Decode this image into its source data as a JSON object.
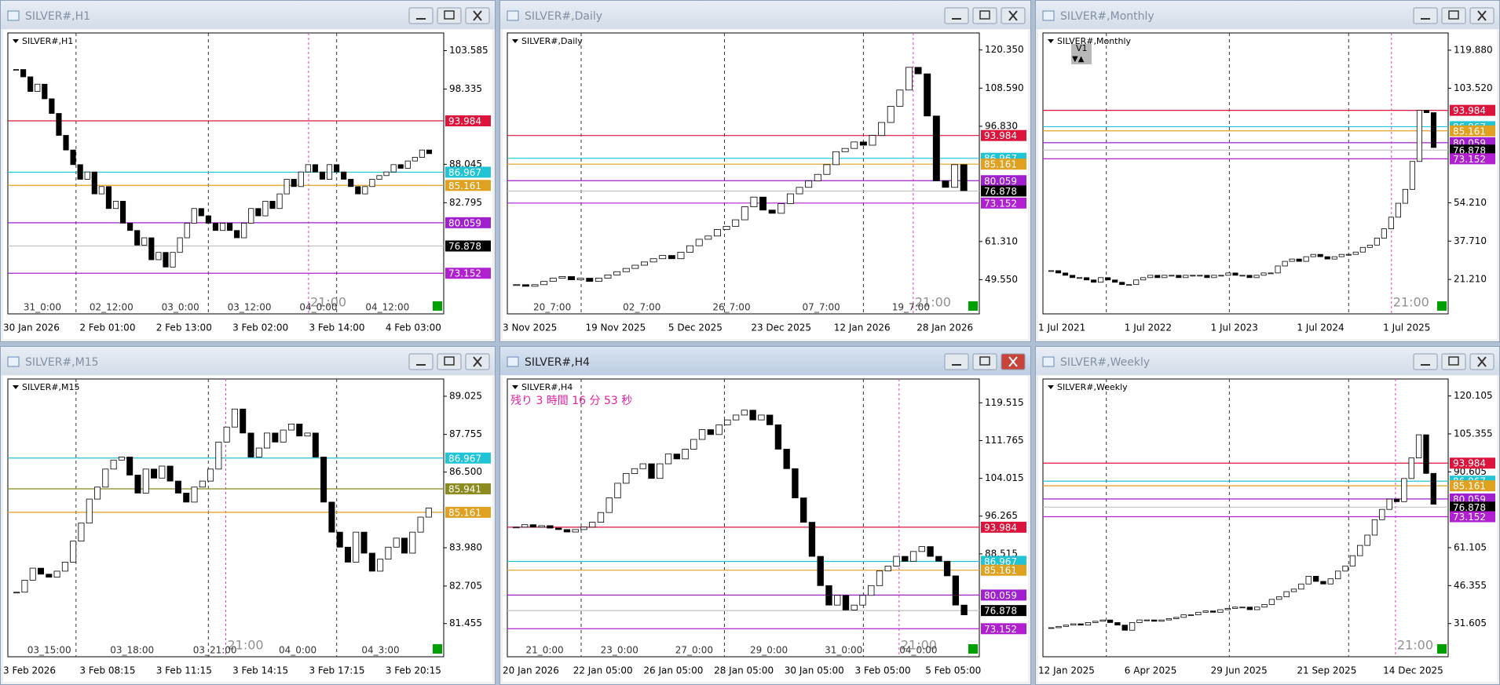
{
  "windows": [
    {
      "title": "SILVER#,H1",
      "type": "candlestick",
      "ylim": [
        67.6,
        106
      ],
      "yticks": [
        103.585,
        98.335,
        88.045,
        82.795
      ],
      "levels": [
        {
          "value": 93.984,
          "color": "#dc143c"
        },
        {
          "value": 86.967,
          "color": "#20c4d4"
        },
        {
          "value": 85.161,
          "color": "#e0a020"
        },
        {
          "value": 80.059,
          "color": "#a020d0"
        },
        {
          "value": 76.878,
          "color": "#000000"
        },
        {
          "value": 73.152,
          "color": "#b020d0"
        }
      ],
      "time_labels": [
        "30 Jan 2026",
        "2 Feb 01:00",
        "2 Feb 13:00",
        "3 Feb 02:00",
        "3 Feb 14:00",
        "4 Feb 03:00"
      ],
      "period_labels": [
        "31_0:00",
        "02_12:00",
        "03_0:00",
        "03_12:00",
        "04_0:00",
        "04_12:00"
      ],
      "marker": "21:00",
      "values": [
        101,
        100,
        98,
        99,
        97,
        95,
        92,
        90,
        88,
        86,
        87,
        84,
        85,
        82,
        83,
        80,
        79,
        77,
        78,
        75,
        76,
        74,
        76,
        78,
        80,
        82,
        81,
        80,
        79,
        80,
        79,
        78,
        80,
        82,
        81,
        83,
        82,
        84,
        86,
        85,
        87,
        88,
        87,
        86,
        88,
        87,
        86,
        85,
        84,
        85,
        86,
        86.5,
        87,
        88,
        87.5,
        88.5,
        89,
        90,
        89.5
      ]
    },
    {
      "title": "SILVER#,Daily",
      "type": "candlestick",
      "ylim": [
        39,
        125.6
      ],
      "yticks": [
        {
          "value": 120.35,
          "label": "120.350"
        },
        {
          "value": 108.59,
          "label": "108.590"
        },
        {
          "value": 96.83,
          "label": "96.830"
        },
        {
          "value": 61.31,
          "label": "61.310"
        },
        {
          "value": 49.55,
          "label": "49.550"
        }
      ],
      "levels": [
        {
          "value": 93.984,
          "color": "#dc143c"
        },
        {
          "value": 86.967,
          "color": "#20c4d4"
        },
        {
          "value": 85.161,
          "color": "#e0a020"
        },
        {
          "value": 80.059,
          "color": "#a020d0"
        },
        {
          "value": 76.878,
          "color": "#000000"
        },
        {
          "value": 73.152,
          "color": "#b020d0"
        }
      ],
      "time_labels": [
        "3 Nov 2025",
        "19 Nov 2025",
        "5 Dec 2025",
        "23 Dec 2025",
        "12 Jan 2026",
        "28 Jan 2026"
      ],
      "period_labels": [
        "20_7:00",
        "02_7:00",
        "26_7:00",
        "07_7:00",
        "19_7:00"
      ],
      "marker": "21:00",
      "values": [
        48,
        47.5,
        48,
        49,
        50,
        50.5,
        49.5,
        50,
        49,
        50,
        51,
        52,
        53,
        54,
        55,
        56,
        57,
        56,
        58,
        60,
        62,
        63,
        65,
        66,
        68,
        72,
        75,
        71,
        70,
        73,
        76,
        78,
        80,
        82,
        85,
        89,
        90,
        92,
        91,
        94,
        98,
        103,
        108,
        115,
        113,
        100,
        80,
        78,
        85,
        77
      ]
    },
    {
      "title": "SILVER#,Monthly",
      "type": "candlestick",
      "ylim": [
        6.4,
        127.3
      ],
      "badge": "V1",
      "yticks": [
        {
          "value": 119.88,
          "label": "119.880"
        },
        {
          "value": 103.52,
          "label": "103.520"
        },
        {
          "value": 54.21,
          "label": "54.210"
        },
        {
          "value": 37.71,
          "label": "37.710"
        },
        {
          "value": 21.21,
          "label": "21.210"
        }
      ],
      "levels": [
        {
          "value": 93.984,
          "color": "#dc143c"
        },
        {
          "value": 86.967,
          "color": "#20c4d4"
        },
        {
          "value": 85.161,
          "color": "#e0a020"
        },
        {
          "value": 80.059,
          "color": "#a020d0"
        },
        {
          "value": 76.878,
          "color": "#000000"
        },
        {
          "value": 73.152,
          "color": "#b020d0"
        }
      ],
      "time_labels": [
        "1 Jul 2021",
        "1 Jul 2022",
        "1 Jul 2023",
        "1 Jul 2024",
        "1 Jul 2025"
      ],
      "period_labels": [],
      "marker": "21:00",
      "values": [
        25,
        24,
        23,
        22,
        22,
        21,
        20,
        22,
        21,
        20,
        19,
        19,
        21,
        22,
        23,
        22,
        23,
        23,
        22,
        23,
        23,
        23,
        22,
        23,
        23,
        24,
        23,
        23,
        22,
        23,
        24,
        24,
        27,
        29,
        30,
        29,
        31,
        32,
        31,
        30,
        31,
        32,
        32,
        33,
        35,
        36,
        39,
        43,
        48,
        54,
        60,
        72,
        94,
        93,
        78
      ]
    },
    {
      "title": "SILVER#,M15",
      "type": "candlestick",
      "ylim": [
        80.35,
        89.6
      ],
      "yticks": [
        89.025,
        87.755,
        {
          "value": 86.5,
          "label": "86.500"
        },
        {
          "value": 83.98,
          "label": "83.980"
        },
        82.705,
        81.455
      ],
      "levels": [
        {
          "value": 86.967,
          "color": "#20c4d4"
        },
        {
          "value": 85.941,
          "color": "#8b8b20"
        },
        {
          "value": 85.161,
          "color": "#e0a020"
        }
      ],
      "time_labels": [
        "3 Feb 2026",
        "3 Feb 08:15",
        "3 Feb 11:15",
        "3 Feb 14:15",
        "3 Feb 17:15",
        "3 Feb 20:15"
      ],
      "period_labels": [
        "03_15:00",
        "03_18:00",
        "03_21:00",
        "04_0:00",
        "04_3:00"
      ],
      "marker": "21:00",
      "values": [
        82.5,
        82.9,
        83.3,
        83.1,
        83.0,
        83.2,
        83.5,
        84.2,
        84.8,
        85.6,
        86.0,
        86.6,
        86.9,
        87.0,
        86.4,
        85.8,
        86.6,
        86.3,
        86.7,
        86.2,
        85.8,
        85.5,
        86.0,
        86.2,
        86.6,
        87.5,
        88.0,
        88.6,
        87.8,
        87.0,
        87.3,
        87.8,
        87.5,
        87.9,
        88.1,
        87.7,
        87.8,
        87.0,
        85.5,
        84.5,
        84.0,
        83.5,
        84.5,
        83.8,
        83.2,
        83.6,
        84.0,
        84.3,
        83.8,
        84.5,
        85.0,
        85.3
      ]
    },
    {
      "title": "SILVER#,H4",
      "type": "candlestick",
      "ylim": [
        67.4,
        124.4
      ],
      "active": true,
      "countdown": "残り 3 時間 16 分 53 秒",
      "yticks": [
        119.515,
        111.765,
        104.015,
        96.265,
        88.515
      ],
      "levels": [
        {
          "value": 93.984,
          "color": "#dc143c"
        },
        {
          "value": 86.967,
          "color": "#20c4d4"
        },
        {
          "value": 85.161,
          "color": "#e0a020"
        },
        {
          "value": 80.059,
          "color": "#a020d0"
        },
        {
          "value": 76.878,
          "color": "#000000"
        },
        {
          "value": 73.152,
          "color": "#b020d0"
        }
      ],
      "time_labels": [
        "20 Jan 2026",
        "22 Jan 05:00",
        "26 Jan 05:00",
        "28 Jan 05:00",
        "30 Jan 05:00",
        "3 Feb 05:00",
        "5 Feb 05:00"
      ],
      "period_labels": [
        "21_0:00",
        "23_0:00",
        "27_0:00",
        "29_0:00",
        "31_0:00",
        "04_0:00"
      ],
      "marker": "21:00",
      "values": [
        94,
        94.5,
        94,
        94.3,
        93.8,
        93.5,
        93,
        93.5,
        94,
        95,
        97,
        100,
        103,
        105,
        106,
        107,
        104,
        107,
        109,
        108,
        110,
        112,
        114,
        113,
        115,
        116,
        117,
        118,
        116,
        117,
        115,
        110,
        106,
        100,
        95,
        88,
        82,
        78,
        80,
        77,
        78,
        80,
        82,
        85,
        86,
        88,
        87,
        89,
        90,
        88,
        87,
        84,
        78,
        76
      ]
    },
    {
      "title": "SILVER#,Weekly",
      "type": "candlestick",
      "ylim": [
        18.7,
        126.7
      ],
      "yticks": [
        120.105,
        105.355,
        90.605,
        61.105,
        46.355,
        31.605
      ],
      "levels": [
        {
          "value": 93.984,
          "color": "#dc143c"
        },
        {
          "value": 86.967,
          "color": "#20c4d4"
        },
        {
          "value": 85.161,
          "color": "#e0a020"
        },
        {
          "value": 80.059,
          "color": "#a020d0"
        },
        {
          "value": 76.878,
          "color": "#000000"
        },
        {
          "value": 73.152,
          "color": "#b020d0"
        }
      ],
      "time_labels": [
        "12 Jan 2025",
        "6 Apr 2025",
        "29 Jun 2025",
        "21 Sep 2025",
        "14 Dec 2025"
      ],
      "period_labels": [],
      "marker": "21:00",
      "values": [
        30,
        30.5,
        31,
        31.5,
        31,
        32,
        32.5,
        33,
        32,
        31,
        29,
        32,
        33,
        33,
        32.5,
        33,
        33.5,
        34,
        35,
        35,
        36,
        36.5,
        36,
        37,
        37.5,
        38,
        38,
        37,
        38,
        39,
        41,
        42,
        44,
        45,
        47,
        50,
        48,
        47,
        49,
        52,
        54,
        58,
        62,
        66,
        72,
        76,
        80,
        79,
        88,
        96,
        105,
        90,
        78
      ]
    }
  ]
}
